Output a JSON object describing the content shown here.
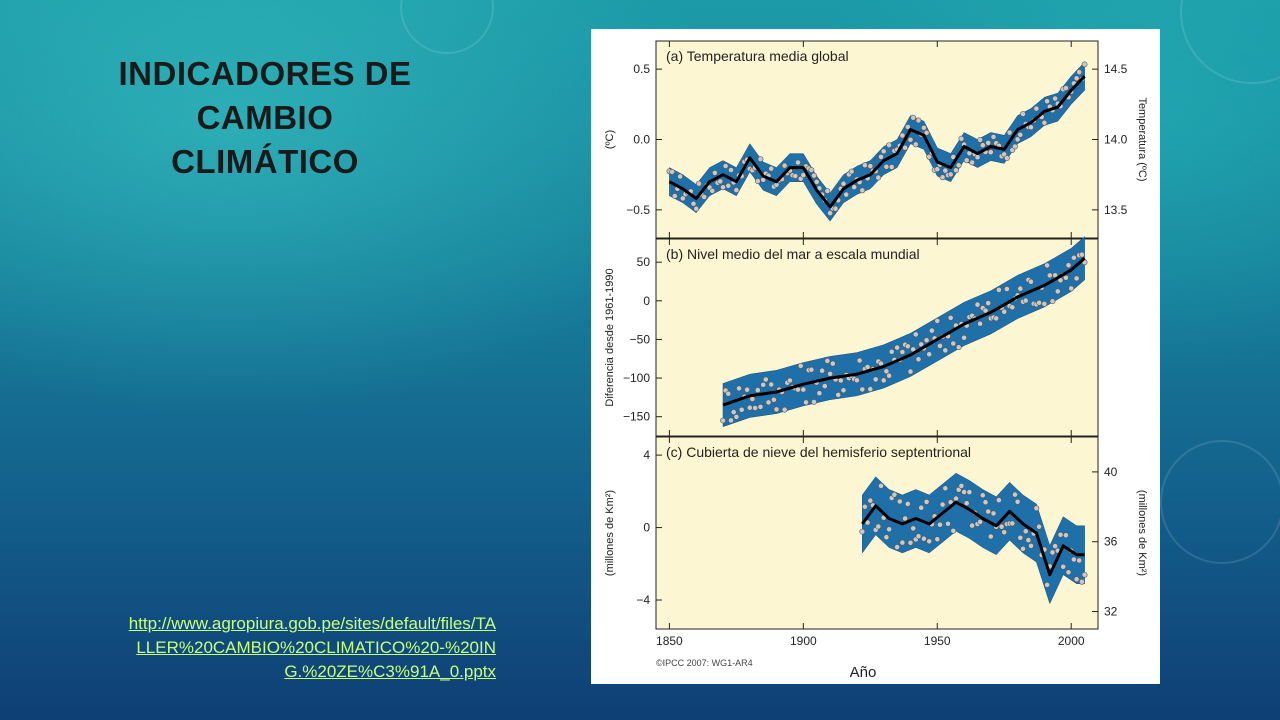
{
  "slide": {
    "title": "INDICADORES DE\nCAMBIO\nCLIMÁTICO",
    "link": "http://www.agropiura.gob.pe/sites/default/files/TALLER%20CAMBIO%20CLIMATICO%20-%20ING.%20ZE%C3%91A_0.pptx"
  },
  "figure": {
    "xlabel": "Año",
    "credit": "©IPCC  2007: WG1-AR4"
  },
  "chart_data": [
    {
      "type": "line",
      "title": "(a) Temperatura media global",
      "ylabel": "(ºC)",
      "y2label": "Temperatura (ºC)",
      "xlim": [
        1845,
        2010
      ],
      "ylim": [
        -0.7,
        0.7
      ],
      "y2lim": [
        13.3,
        14.7
      ],
      "xticks": [
        1850,
        1900,
        1950,
        2000
      ],
      "yticks": [
        -0.5,
        0.0,
        0.5
      ],
      "ytick_labels": [
        "−0.5",
        "0.0",
        "0.5"
      ],
      "y2ticks": [
        13.5,
        14.0,
        14.5
      ],
      "y2tick_labels": [
        "13.5",
        "14.0",
        "14.5"
      ],
      "band_halfwidth": 0.1,
      "x": [
        1850,
        1855,
        1860,
        1865,
        1870,
        1875,
        1880,
        1885,
        1890,
        1895,
        1900,
        1905,
        1910,
        1915,
        1920,
        1925,
        1930,
        1935,
        1940,
        1945,
        1950,
        1955,
        1960,
        1965,
        1970,
        1975,
        1980,
        1985,
        1990,
        1995,
        2000,
        2005
      ],
      "smooth": [
        -0.3,
        -0.35,
        -0.42,
        -0.3,
        -0.25,
        -0.3,
        -0.13,
        -0.26,
        -0.3,
        -0.2,
        -0.2,
        -0.36,
        -0.48,
        -0.35,
        -0.29,
        -0.25,
        -0.15,
        -0.1,
        0.07,
        0.03,
        -0.16,
        -0.2,
        -0.05,
        -0.1,
        -0.05,
        -0.07,
        0.07,
        0.12,
        0.2,
        0.23,
        0.35,
        0.45
      ]
    },
    {
      "type": "line",
      "title": "(b) Nivel medio del mar a escala mundial",
      "ylabel": "Diferencia desde 1961-1990",
      "xlim": [
        1845,
        2010
      ],
      "ylim": [
        -175,
        80
      ],
      "xticks": [
        1850,
        1900,
        1950,
        2000
      ],
      "yticks": [
        -150,
        -100,
        -50,
        0,
        50
      ],
      "ytick_labels": [
        "−150",
        "−100",
        "−50",
        "0",
        "50"
      ],
      "band_halfwidth": 28,
      "x": [
        1870,
        1880,
        1890,
        1900,
        1910,
        1920,
        1930,
        1940,
        1950,
        1960,
        1970,
        1980,
        1990,
        2000,
        2005
      ],
      "smooth": [
        -135,
        -123,
        -118,
        -108,
        -100,
        -95,
        -85,
        -70,
        -50,
        -30,
        -15,
        5,
        20,
        40,
        55
      ]
    },
    {
      "type": "line",
      "title": "(c) Cubierta de nieve del hemisferio septentrional",
      "ylabel": "(millones de Km²)",
      "y2label": "(millones de Km²)",
      "xlim": [
        1845,
        2010
      ],
      "ylim": [
        -5.6,
        5.0
      ],
      "y2lim": [
        31.0,
        42.0
      ],
      "xticks": [
        1850,
        1900,
        1950,
        2000
      ],
      "xtick_labels": [
        "1850",
        "1900",
        "1950",
        "2000"
      ],
      "yticks": [
        -4,
        0,
        4
      ],
      "ytick_labels": [
        "−4",
        "0",
        "4"
      ],
      "y2ticks": [
        32,
        36,
        40
      ],
      "y2tick_labels": [
        "32",
        "36",
        "40"
      ],
      "band_halfwidth": 1.6,
      "x": [
        1922,
        1927,
        1932,
        1937,
        1942,
        1947,
        1952,
        1957,
        1962,
        1967,
        1972,
        1977,
        1982,
        1987,
        1992,
        1997,
        2002,
        2005
      ],
      "smooth": [
        0.2,
        1.2,
        0.5,
        0.2,
        0.5,
        0.2,
        0.8,
        1.4,
        1.0,
        0.5,
        0.1,
        0.9,
        0.2,
        -0.3,
        -2.6,
        -1.0,
        -1.5,
        -1.5
      ]
    }
  ]
}
